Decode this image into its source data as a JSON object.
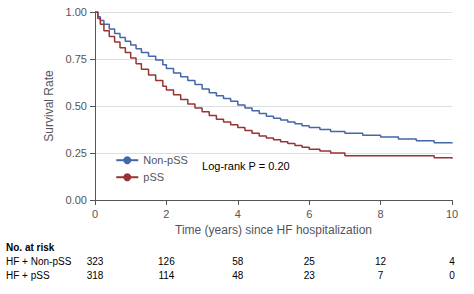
{
  "chart_data": {
    "type": "step",
    "xlabel": "Time (years) since HF hospitalization",
    "ylabel": "Survival Rate",
    "series": [
      {
        "name": "Non-pSS",
        "color": "#4466aa",
        "x": [
          0,
          0.08,
          0.15,
          0.25,
          0.4,
          0.55,
          0.7,
          0.85,
          1.0,
          1.15,
          1.3,
          1.5,
          1.7,
          1.9,
          2.0,
          2.2,
          2.4,
          2.6,
          2.8,
          3.0,
          3.2,
          3.4,
          3.6,
          3.8,
          4.0,
          4.2,
          4.4,
          4.6,
          4.8,
          5.0,
          5.2,
          5.4,
          5.6,
          5.8,
          6.0,
          6.3,
          6.6,
          7.0,
          7.5,
          8.0,
          8.5,
          9.0,
          9.5,
          10.0
        ],
        "values": [
          1.0,
          0.975,
          0.955,
          0.935,
          0.91,
          0.885,
          0.865,
          0.845,
          0.825,
          0.805,
          0.785,
          0.765,
          0.745,
          0.72,
          0.7,
          0.675,
          0.655,
          0.635,
          0.615,
          0.59,
          0.57,
          0.555,
          0.54,
          0.525,
          0.505,
          0.49,
          0.475,
          0.46,
          0.445,
          0.435,
          0.425,
          0.415,
          0.405,
          0.395,
          0.385,
          0.375,
          0.365,
          0.355,
          0.345,
          0.335,
          0.325,
          0.315,
          0.305,
          0.3
        ]
      },
      {
        "name": "pSS",
        "color": "#993333",
        "x": [
          0,
          0.08,
          0.15,
          0.25,
          0.4,
          0.55,
          0.7,
          0.85,
          1.0,
          1.15,
          1.3,
          1.5,
          1.7,
          1.9,
          2.0,
          2.2,
          2.4,
          2.6,
          2.8,
          3.0,
          3.2,
          3.4,
          3.6,
          3.8,
          4.0,
          4.2,
          4.4,
          4.6,
          4.8,
          5.0,
          5.2,
          5.4,
          5.6,
          5.8,
          6.0,
          6.3,
          6.6,
          7.0,
          7.5,
          8.0,
          8.5,
          9.0,
          9.5,
          10.0
        ],
        "values": [
          1.0,
          0.965,
          0.935,
          0.9,
          0.87,
          0.84,
          0.81,
          0.785,
          0.755,
          0.725,
          0.695,
          0.665,
          0.635,
          0.605,
          0.585,
          0.56,
          0.535,
          0.51,
          0.49,
          0.47,
          0.45,
          0.43,
          0.415,
          0.4,
          0.385,
          0.37,
          0.355,
          0.34,
          0.33,
          0.32,
          0.31,
          0.3,
          0.29,
          0.28,
          0.27,
          0.26,
          0.25,
          0.235,
          0.235,
          0.235,
          0.235,
          0.235,
          0.225,
          0.22
        ]
      }
    ],
    "xlim": [
      0,
      10
    ],
    "ylim": [
      0.0,
      1.0
    ],
    "xticks": [
      0,
      2,
      4,
      6,
      8,
      10
    ],
    "yticks": [
      {
        "value": 0.0,
        "label": "0.00"
      },
      0.25,
      {
        "value": 0.5,
        "label": "0.50"
      },
      0.75,
      {
        "value": 1.0,
        "label": "1.00"
      }
    ],
    "grid": true,
    "legend": "lower left",
    "annotation": "Log-rank P = 0.20",
    "risk_table": {
      "title": "No. at risk",
      "times": [
        0,
        2,
        4,
        6,
        8,
        10
      ],
      "rows": [
        {
          "name": "HF + Non-pSS",
          "values": [
            323,
            126,
            58,
            25,
            12,
            4
          ]
        },
        {
          "name": "HF + pSS",
          "values": [
            318,
            114,
            48,
            23,
            7,
            0
          ]
        }
      ]
    }
  }
}
